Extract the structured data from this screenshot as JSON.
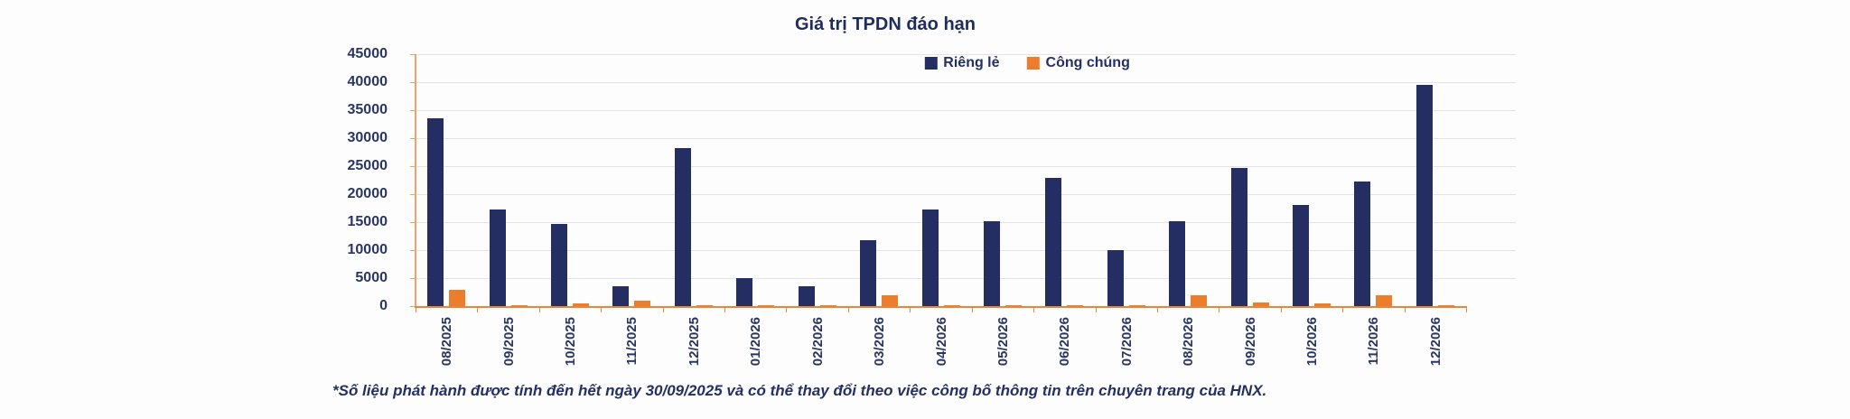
{
  "title": "Giá trị TPDN đáo hạn",
  "footnote": "*Số liệu phát hành được tính đến hết ngày 30/09/2025 và có thể thay đổi theo việc công bố thông tin trên chuyên trang của HNX.",
  "colors": {
    "navy": "#252e62",
    "orange": "#ec7d2d",
    "axis_y": "#f0a368",
    "axis_x": "#e8873c",
    "grid": "#e3e3e3",
    "text": "#2a3563"
  },
  "chart_data": {
    "type": "bar",
    "title": "Giá trị TPDN đáo hạn",
    "categories": [
      "08/2025",
      "09/2025",
      "10/2025",
      "11/2025",
      "12/2025",
      "01/2026",
      "02/2026",
      "03/2026",
      "04/2026",
      "05/2026",
      "06/2026",
      "07/2026",
      "08/2026",
      "09/2026",
      "10/2026",
      "11/2026",
      "12/2026"
    ],
    "series": [
      {
        "name": "Riêng lẻ",
        "color": "#252e62",
        "values": [
          33500,
          17300,
          14600,
          3500,
          28300,
          5000,
          3600,
          11700,
          17300,
          15100,
          22900,
          10000,
          15200,
          24700,
          18000,
          22300,
          39500
        ]
      },
      {
        "name": "Công chúng",
        "color": "#ec7d2d",
        "values": [
          2900,
          100,
          500,
          950,
          100,
          50,
          50,
          2000,
          100,
          200,
          100,
          200,
          2000,
          650,
          450,
          2000,
          100
        ]
      }
    ],
    "xlabel": "",
    "ylabel": "",
    "ylim": [
      0,
      45000
    ],
    "ytick_step": 5000,
    "grid": true,
    "legend_position": "top-center"
  }
}
